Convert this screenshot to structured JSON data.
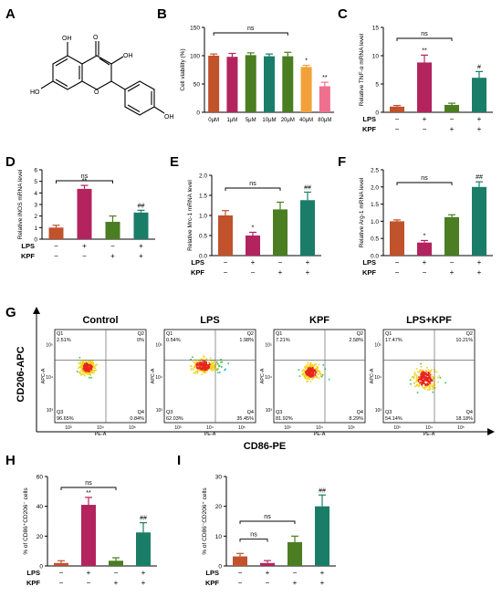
{
  "panel_letters": [
    "A",
    "B",
    "C",
    "D",
    "E",
    "F",
    "G",
    "H",
    "I"
  ],
  "molecule": {
    "atoms": [
      "OH",
      "O",
      "OH",
      "HO",
      "O",
      "OH"
    ]
  },
  "colors": {
    "red": "#c0522c",
    "magenta": "#b3245e",
    "green": "#4b7d22",
    "teal": "#1a7d68",
    "orange": "#f2a13a",
    "pink": "#ef6f8f"
  },
  "treatment_rows": {
    "lps_label": "LPS",
    "kpf_label": "KPF",
    "lps": [
      "−",
      "+",
      "−",
      "+"
    ],
    "kpf": [
      "−",
      "−",
      "+",
      "+"
    ]
  },
  "chart_data": [
    {
      "panel": "B",
      "type": "bar",
      "categories": [
        "0μM",
        "1μM",
        "5μM",
        "10μM",
        "20μM",
        "40μM",
        "80μM"
      ],
      "values": [
        100,
        98,
        101,
        99,
        99,
        80,
        46
      ],
      "errors": [
        3,
        6,
        4,
        4,
        7,
        3,
        7
      ],
      "ylabel": "Cell viability (%)",
      "ylim": [
        0,
        150
      ],
      "yticks": [
        "0",
        "50",
        "100",
        "150"
      ],
      "annotations": [
        "*",
        "**"
      ],
      "bracket_label": "ns",
      "bar_colors": [
        "#c0522c",
        "#b3245e",
        "#4b7d22",
        "#1a7d68",
        "#4b7d22",
        "#f2a13a",
        "#ef6f8f"
      ]
    },
    {
      "panel": "C",
      "type": "bar",
      "categories": [
        "LPS−/KPF−",
        "LPS+/KPF−",
        "LPS−/KPF+",
        "LPS+/KPF+"
      ],
      "values": [
        1.0,
        8.8,
        1.3,
        6.1
      ],
      "errors": [
        0.2,
        1.3,
        0.3,
        1.1
      ],
      "ylabel": "Relative TNF-α mRNA level",
      "ylim": [
        0,
        15
      ],
      "yticks": [
        "0",
        "5",
        "10",
        "15"
      ],
      "annotations": [
        "**",
        "#"
      ],
      "bracket_label": "ns"
    },
    {
      "panel": "D",
      "type": "bar",
      "categories": [
        "LPS−/KPF−",
        "LPS+/KPF−",
        "LPS−/KPF+",
        "LPS+/KPF+"
      ],
      "values": [
        1.0,
        4.35,
        1.5,
        2.3
      ],
      "errors": [
        0.2,
        0.3,
        0.5,
        0.2
      ],
      "ylabel": "Relative iNOS mRNA level",
      "ylim": [
        0,
        6
      ],
      "yticks": [
        "0",
        "1",
        "2",
        "3",
        "4",
        "5",
        "6"
      ],
      "annotations": [
        "**",
        "##"
      ],
      "bracket_label": "ns"
    },
    {
      "panel": "E",
      "type": "bar",
      "categories": [
        "LPS−/KPF−",
        "LPS+/KPF−",
        "LPS−/KPF+",
        "LPS+/KPF+"
      ],
      "values": [
        1.0,
        0.5,
        1.15,
        1.38
      ],
      "errors": [
        0.12,
        0.08,
        0.18,
        0.2
      ],
      "ylabel": "Relative Mrc-1 mRNA level",
      "ylim": [
        0,
        2.0
      ],
      "yticks": [
        "0.0",
        "0.5",
        "1.0",
        "1.5",
        "2.0"
      ],
      "annotations": [
        "*",
        "##"
      ],
      "bracket_label": "ns"
    },
    {
      "panel": "F",
      "type": "bar",
      "categories": [
        "LPS−/KPF−",
        "LPS+/KPF−",
        "LPS−/KPF+",
        "LPS+/KPF+"
      ],
      "values": [
        1.0,
        0.38,
        1.12,
        2.0
      ],
      "errors": [
        0.04,
        0.06,
        0.07,
        0.15
      ],
      "ylabel": "Relative Arg-1 mRNA level",
      "ylim": [
        0,
        2.5
      ],
      "yticks": [
        "0.0",
        "0.5",
        "1.0",
        "1.5",
        "2.0",
        "2.5"
      ],
      "annotations": [
        "*",
        "##"
      ],
      "bracket_label": "ns"
    },
    {
      "panel": "H",
      "type": "bar",
      "categories": [
        "LPS−/KPF−",
        "LPS+/KPF−",
        "LPS−/KPF+",
        "LPS+/KPF+"
      ],
      "values": [
        2,
        41,
        3.5,
        22.5
      ],
      "errors": [
        1.5,
        5,
        2,
        6.5
      ],
      "ylabel": "% of CD86⁺CD206⁻ cells",
      "ylim": [
        0,
        60
      ],
      "yticks": [
        "0",
        "20",
        "40",
        "60"
      ],
      "annotations": [
        "**",
        "##"
      ],
      "bracket_label": "ns"
    },
    {
      "panel": "I",
      "type": "bar",
      "categories": [
        "LPS−/KPF−",
        "LPS+/KPF−",
        "LPS−/KPF+",
        "LPS+/KPF+"
      ],
      "values": [
        3.2,
        1.0,
        8.0,
        20.0
      ],
      "errors": [
        1.0,
        0.8,
        2.0,
        3.8
      ],
      "ylabel": "% of CD86⁻CD206⁺ cells",
      "ylim": [
        0,
        30
      ],
      "yticks": [
        "0",
        "10",
        "20",
        "30"
      ],
      "annotations": [
        "##"
      ],
      "bracket_labels": [
        "ns",
        "ns"
      ]
    },
    {
      "panel": "G",
      "type": "scatter",
      "ylabel": "CD206-APC",
      "xlabel": "CD86-PE",
      "plot_axis_x": "PE-A",
      "plot_axis_y": "APC-A",
      "tick_labels": [
        "10³",
        "10⁴",
        "10⁵"
      ],
      "plots": [
        {
          "title": "Control",
          "q1": "2.51%",
          "q2": "0%",
          "q3": "96.65%",
          "q4": "0.84%"
        },
        {
          "title": "LPS",
          "q1": "0.54%",
          "q2": "1.98%",
          "q3": "62.03%",
          "q4": "35.45%"
        },
        {
          "title": "KPF",
          "q1": "7.21%",
          "q2": "2.58%",
          "q3": "81.92%",
          "q4": "8.29%"
        },
        {
          "title": "LPS+KPF",
          "q1": "17.47%",
          "q2": "10.21%",
          "q3": "54.14%",
          "q4": "18.18%"
        }
      ],
      "quadrant_names": [
        "Q1",
        "Q2",
        "Q3",
        "Q4"
      ]
    }
  ]
}
